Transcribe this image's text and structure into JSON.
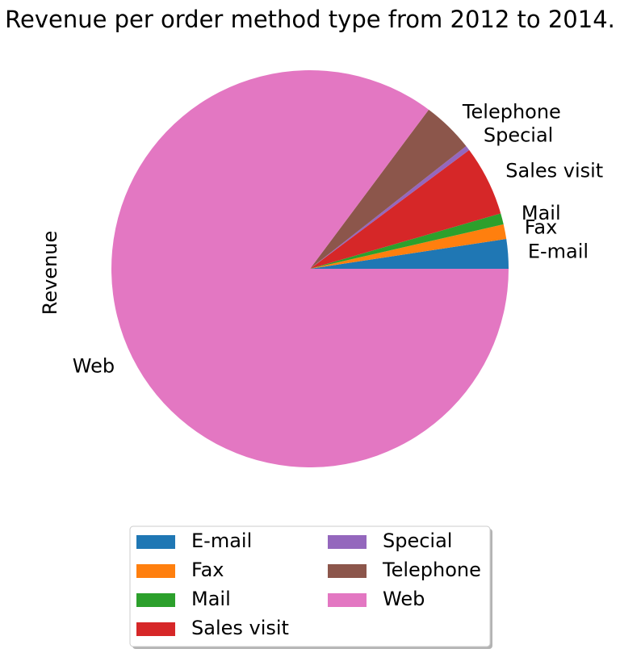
{
  "chart_data": {
    "type": "pie",
    "title": "Revenue per order method type from 2012 to 2014.",
    "ylabel": "Revenue",
    "xlabel": "",
    "categories": [
      "E-mail",
      "Fax",
      "Mail",
      "Sales visit",
      "Special",
      "Telephone",
      "Web"
    ],
    "values": [
      2.4,
      1.2,
      0.9,
      5.7,
      0.4,
      4.2,
      85.2
    ],
    "colors": [
      "#1f77b4",
      "#ff7f0e",
      "#2ca02c",
      "#d62728",
      "#9467bd",
      "#8c564b",
      "#e377c2"
    ],
    "start_angle_deg": 0,
    "direction": "counterclockwise",
    "legend": {
      "placement": "bottom-center",
      "columns": 2,
      "shadow": true
    }
  }
}
